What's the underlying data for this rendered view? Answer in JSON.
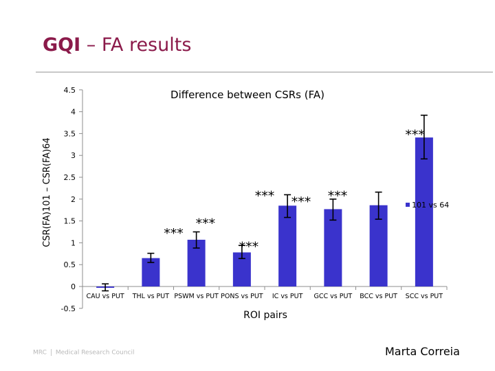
{
  "slide": {
    "title_bold": "GQI",
    "title_rest": " – FA results",
    "footer_org_short": "MRC",
    "footer_org_full": "Medical Research Council",
    "author": "Marta Correia"
  },
  "colors": {
    "bar": "#3a33cc",
    "title": "#8b1a4a"
  },
  "chart_data": {
    "type": "bar",
    "title": "Difference between CSRs (FA)",
    "xlabel": "ROI pairs",
    "ylabel": "CSR(FA)101 – CSR(FA)64",
    "ylim": [
      -0.5,
      4.5
    ],
    "yticks": [
      "4.5",
      "4",
      "3.5",
      "3",
      "2.5",
      "2",
      "1.5",
      "1",
      "0.5",
      "0",
      "-0.5"
    ],
    "ytick_values": [
      4.5,
      4,
      3.5,
      3,
      2.5,
      2,
      1.5,
      1,
      0.5,
      0,
      -0.5
    ],
    "categories": [
      "CAU vs PUT",
      "THL vs PUT",
      "PSWM vs PUT",
      "PONS vs PUT",
      "IC vs PUT",
      "GCC vs PUT",
      "BCC vs PUT",
      "SCC vs PUT"
    ],
    "series": [
      {
        "name": "101 vs 64",
        "values": [
          -0.03,
          0.65,
          1.07,
          0.78,
          1.85,
          1.77,
          1.86,
          3.41
        ],
        "error_low": [
          -0.1,
          0.55,
          0.88,
          0.64,
          1.58,
          1.52,
          1.54,
          2.92
        ],
        "error_high": [
          0.06,
          0.76,
          1.25,
          0.94,
          2.1,
          2.0,
          2.16,
          3.92
        ]
      }
    ],
    "annotations": [
      {
        "text": "***",
        "x": 1.5,
        "y": 1.27
      },
      {
        "text": "***",
        "x": 2.2,
        "y": 1.5
      },
      {
        "text": "***",
        "x": 3.15,
        "y": 0.97
      },
      {
        "text": "***",
        "x": 3.5,
        "y": 2.13
      },
      {
        "text": "***",
        "x": 4.3,
        "y": 2.0
      },
      {
        "text": "***",
        "x": 5.1,
        "y": 2.13
      },
      {
        "text": "***",
        "x": 6.8,
        "y": 3.53
      }
    ],
    "legend": "right"
  }
}
